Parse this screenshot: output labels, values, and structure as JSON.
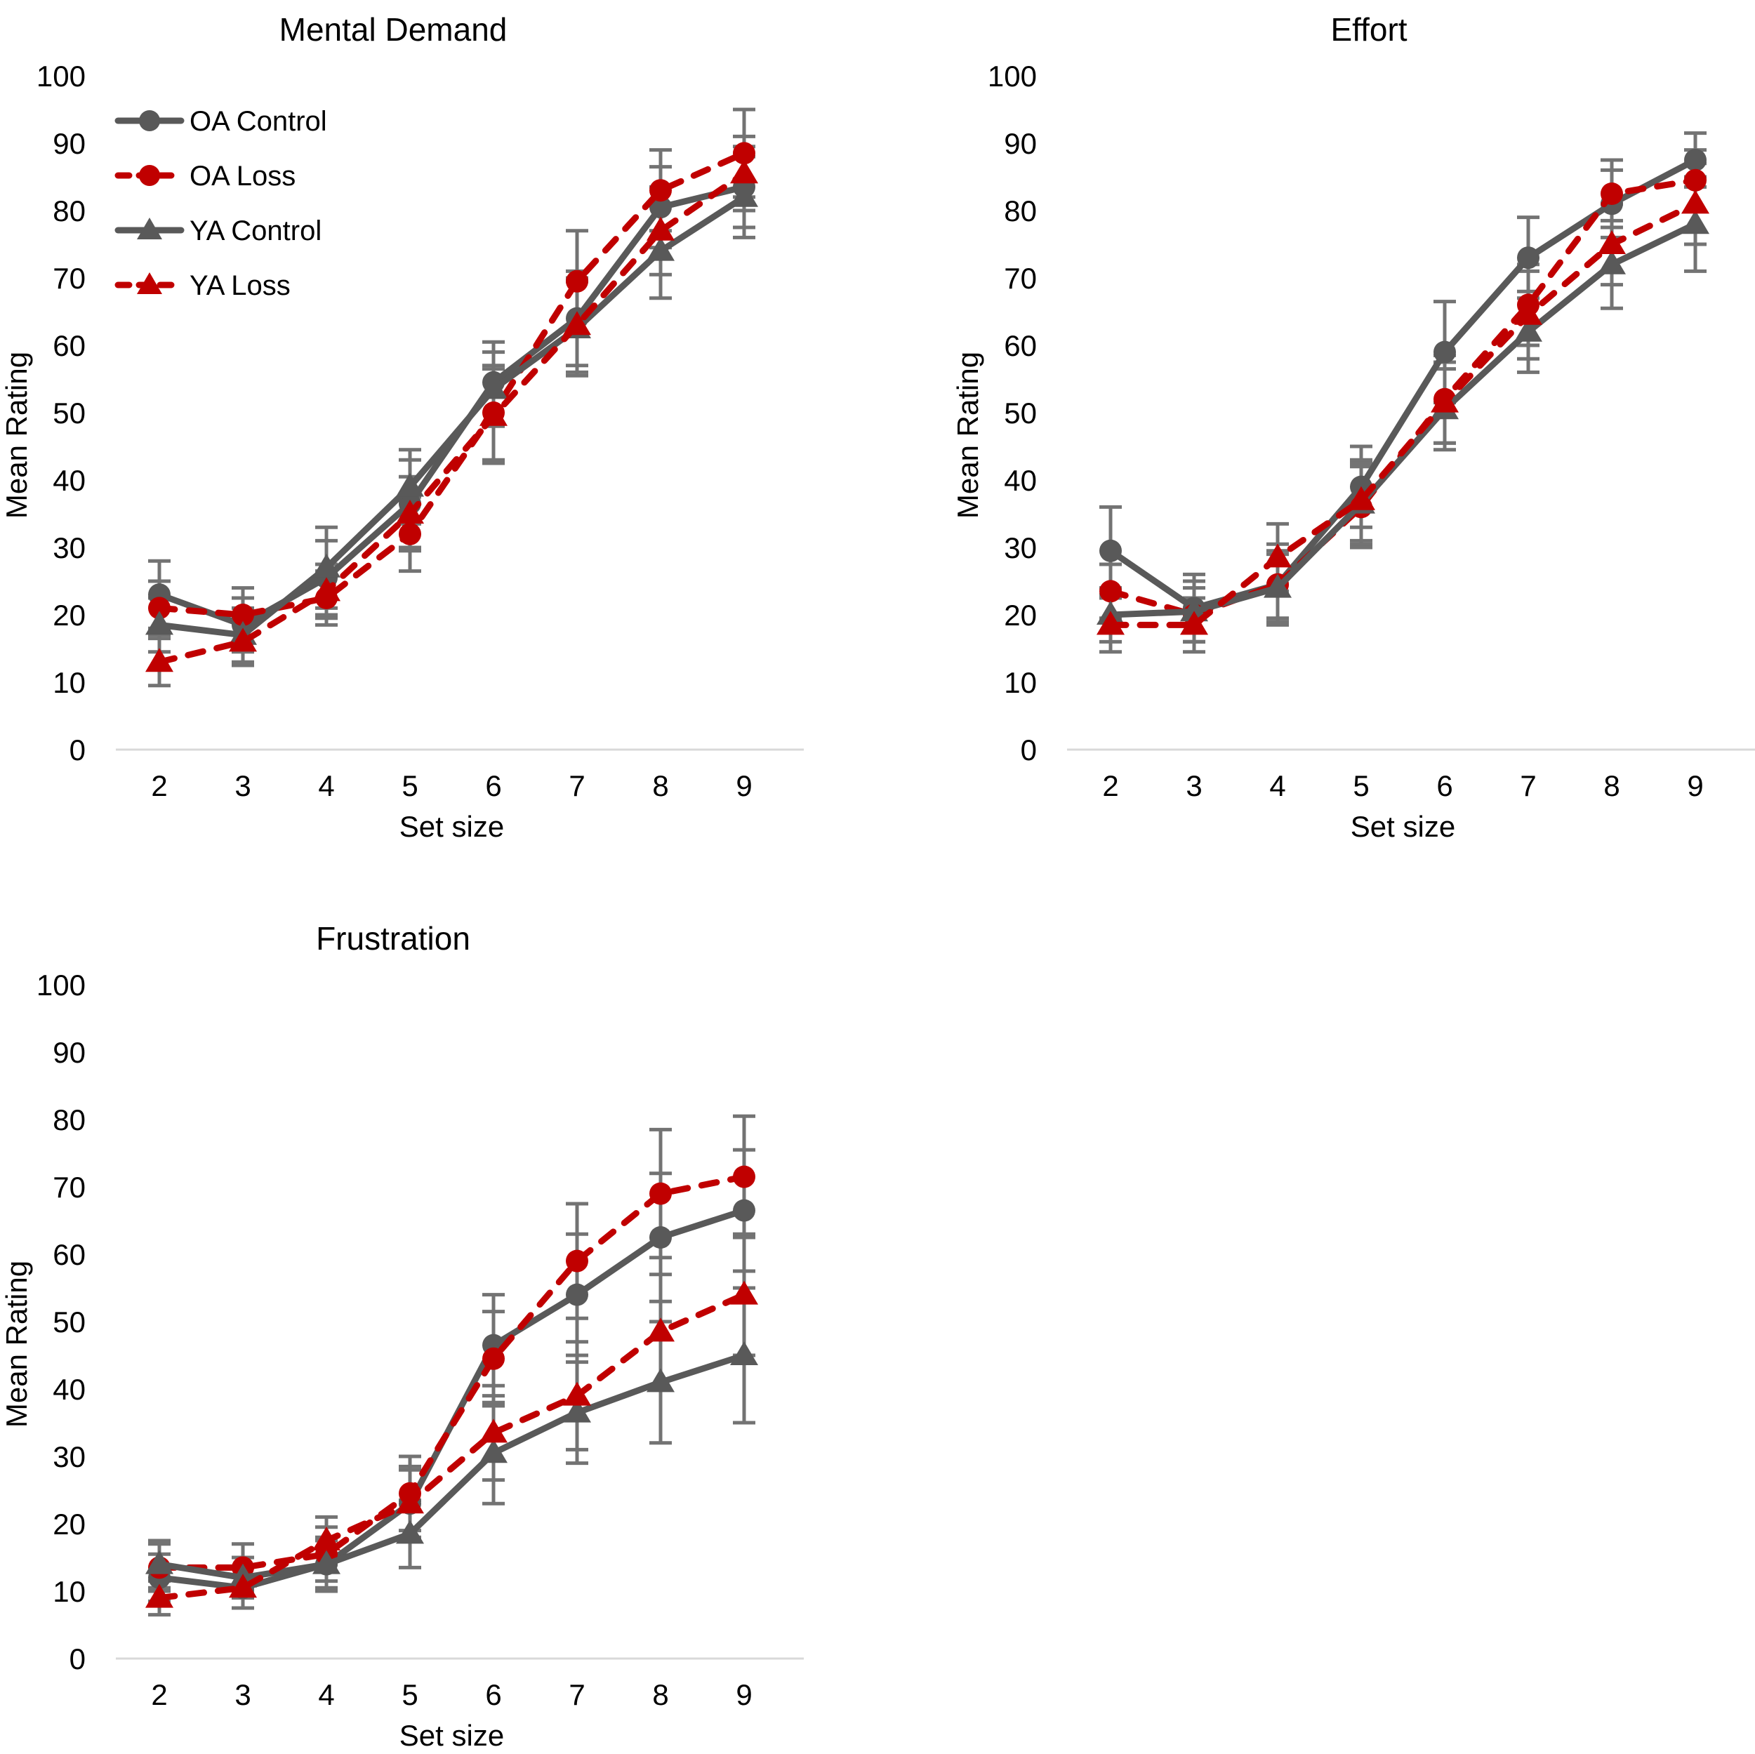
{
  "colors": {
    "oa_control": "#595959",
    "oa_loss": "#c00000",
    "ya_control": "#595959",
    "ya_loss": "#c00000",
    "error_bar": "#737373",
    "axis_line": "#d9d9d9",
    "text": "#000000"
  },
  "legend": {
    "items": [
      "OA Control",
      "OA Loss",
      "YA Control",
      "YA Loss"
    ]
  },
  "chart_data": [
    {
      "type": "line",
      "title": "Mental Demand",
      "xlabel": "Set size",
      "ylabel": "Mean Rating",
      "x": [
        2,
        3,
        4,
        5,
        6,
        7,
        8,
        9
      ],
      "ylim": [
        0,
        100
      ],
      "yticks": [
        0,
        10,
        20,
        30,
        40,
        50,
        60,
        70,
        80,
        90,
        100
      ],
      "grid": false,
      "legend_position": "upper-left-inside",
      "series": [
        {
          "name": "OA Control",
          "color": "#595959",
          "style": "solid",
          "marker": "circle",
          "values": [
            23,
            18.5,
            25.5,
            36.5,
            54.5,
            64,
            80.5,
            83.5
          ],
          "errors": [
            5,
            4,
            5.5,
            6.5,
            6,
            7,
            6,
            6
          ]
        },
        {
          "name": "OA Loss",
          "color": "#c00000",
          "style": "dashed",
          "marker": "circle",
          "values": [
            21,
            20,
            22.5,
            32,
            50,
            69.5,
            83,
            88.5
          ],
          "errors": [
            4,
            4,
            4,
            5.5,
            7,
            7.5,
            6,
            6.5
          ]
        },
        {
          "name": "YA Control",
          "color": "#595959",
          "style": "solid",
          "marker": "triangle",
          "values": [
            18.5,
            17,
            27,
            39,
            53.5,
            62.5,
            74,
            82
          ],
          "errors": [
            4,
            4,
            6,
            5.5,
            5.5,
            7,
            7,
            6
          ]
        },
        {
          "name": "YA Loss",
          "color": "#c00000",
          "style": "dashed",
          "marker": "triangle",
          "values": [
            13,
            16,
            23.5,
            35,
            49.5,
            63,
            77,
            85.5
          ],
          "errors": [
            3.5,
            3.5,
            4,
            5.5,
            7,
            7,
            6.5,
            5.5
          ]
        }
      ]
    },
    {
      "type": "line",
      "title": "Effort",
      "xlabel": "Set size",
      "ylabel": "Mean Rating",
      "x": [
        2,
        3,
        4,
        5,
        6,
        7,
        8,
        9
      ],
      "ylim": [
        0,
        100
      ],
      "yticks": [
        0,
        10,
        20,
        30,
        40,
        50,
        60,
        70,
        80,
        90,
        100
      ],
      "grid": false,
      "legend_position": "none",
      "series": [
        {
          "name": "OA Control",
          "color": "#595959",
          "style": "solid",
          "marker": "circle",
          "values": [
            29.5,
            21,
            24.5,
            39,
            59,
            73,
            81,
            87.5
          ],
          "errors": [
            6.5,
            5,
            6,
            6,
            7.5,
            6,
            5,
            4
          ]
        },
        {
          "name": "OA Loss",
          "color": "#c00000",
          "style": "dashed",
          "marker": "circle",
          "values": [
            23.5,
            20,
            24.5,
            36,
            52,
            66,
            82.5,
            84.5
          ],
          "errors": [
            4,
            4,
            5,
            6,
            6.5,
            6,
            5,
            4.5
          ]
        },
        {
          "name": "YA Control",
          "color": "#595959",
          "style": "solid",
          "marker": "triangle",
          "values": [
            20,
            20.5,
            24,
            36.5,
            50.5,
            62,
            72,
            78
          ],
          "errors": [
            4,
            4.5,
            5,
            6,
            6,
            6,
            6.5,
            7
          ]
        },
        {
          "name": "YA Loss",
          "color": "#c00000",
          "style": "dashed",
          "marker": "triangle",
          "values": [
            18.5,
            18.5,
            28.5,
            37,
            51.5,
            64.5,
            75,
            81
          ],
          "errors": [
            4,
            4,
            5,
            6,
            6,
            6.5,
            6,
            6
          ]
        }
      ]
    },
    {
      "type": "line",
      "title": "Frustration",
      "xlabel": "Set size",
      "ylabel": "Mean Rating",
      "x": [
        2,
        3,
        4,
        5,
        6,
        7,
        8,
        9
      ],
      "ylim": [
        0,
        100
      ],
      "yticks": [
        0,
        10,
        20,
        30,
        40,
        50,
        60,
        70,
        80,
        90,
        100
      ],
      "grid": false,
      "legend_position": "none",
      "series": [
        {
          "name": "OA Control",
          "color": "#595959",
          "style": "solid",
          "marker": "circle",
          "values": [
            12,
            10.5,
            14,
            23,
            46.5,
            54,
            62.5,
            66.5
          ],
          "errors": [
            3.5,
            3,
            4,
            5.5,
            7.5,
            9,
            9.5,
            9
          ]
        },
        {
          "name": "OA Loss",
          "color": "#c00000",
          "style": "dashed",
          "marker": "circle",
          "values": [
            13.5,
            13.5,
            15.5,
            24.5,
            44.5,
            59,
            69,
            71.5
          ],
          "errors": [
            3.5,
            3.5,
            4,
            5.5,
            7,
            8.5,
            9.5,
            9
          ]
        },
        {
          "name": "YA Control",
          "color": "#595959",
          "style": "solid",
          "marker": "triangle",
          "values": [
            14,
            12,
            14,
            18.5,
            30.5,
            36.5,
            41,
            45
          ],
          "errors": [
            3.5,
            3,
            3.5,
            5,
            7.5,
            7.5,
            9,
            10
          ]
        },
        {
          "name": "YA Loss",
          "color": "#c00000",
          "style": "dashed",
          "marker": "triangle",
          "values": [
            9,
            10.5,
            17.5,
            23,
            33.5,
            39,
            48.5,
            54
          ],
          "errors": [
            2.5,
            3,
            3.5,
            5,
            7,
            8,
            8.5,
            9
          ]
        }
      ]
    }
  ]
}
